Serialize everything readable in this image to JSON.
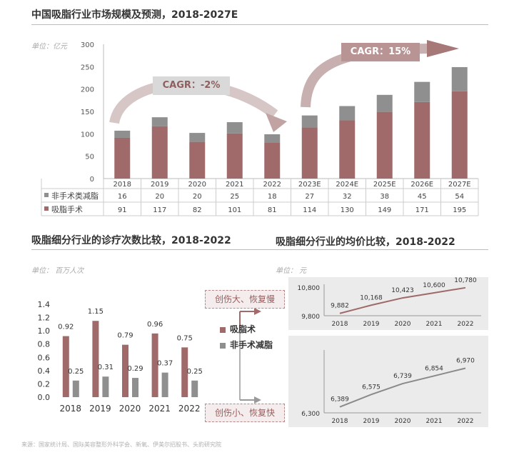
{
  "colors": {
    "surgery": "#a06a6a",
    "nonsurgery": "#8f8f8f",
    "line1": "#9e6a68",
    "line2": "#8a8a8a",
    "panel": "#ebebeb"
  },
  "chart1": {
    "title": "中国吸脂行业市场规模及预测，2018-2027E",
    "unit": "单位：亿元",
    "yticks": [
      "300",
      "250",
      "200",
      "150",
      "100",
      "50",
      "0"
    ],
    "ylim": [
      0,
      300
    ],
    "cagr_left": "CAGR：-2%",
    "cagr_right": "CAGR：15%",
    "table_labels": [
      "非手术类减脂",
      "吸脂手术"
    ]
  },
  "chart2": {
    "title": "吸脂细分行业的诊疗次数比较，2018-2022",
    "unit": "单位：  百万人次",
    "yticks": [
      "1.4",
      "1.2",
      "1.0",
      "0.8",
      "0.6",
      "0.4",
      "0.2",
      "0.0"
    ],
    "ylim": [
      0,
      1.4
    ]
  },
  "chart3": {
    "title": "吸脂细分行业的均价比较，2018-2022",
    "unit": "单位：  元",
    "top_yticks": [
      "10,800",
      "9,800"
    ],
    "bottom_yticks": [
      "6,300"
    ]
  },
  "side": {
    "box_top": "创伤大、恢复慢",
    "box_bottom": "创伤小、恢复快",
    "legend_surgery": "吸脂术",
    "legend_nonsurgery": "非手术减脂"
  },
  "source": "来源：国家统计局、国际美容整形外科学会、新氧、伊美尔招股书、头豹研究院",
  "chart_data": [
    {
      "type": "bar",
      "stacked": true,
      "title": "中国吸脂行业市场规模及预测，2018-2027E",
      "ylabel": "单位：亿元",
      "ylim": [
        0,
        300
      ],
      "categories": [
        "2018",
        "2019",
        "2020",
        "2021",
        "2022",
        "2023E",
        "2024E",
        "2025E",
        "2026E",
        "2027E"
      ],
      "series": [
        {
          "name": "吸脂手术",
          "values": [
            91,
            117,
            82,
            101,
            81,
            114,
            130,
            149,
            171,
            195
          ]
        },
        {
          "name": "非手术类减脂",
          "values": [
            16,
            20,
            20,
            25,
            18,
            27,
            32,
            38,
            45,
            54
          ]
        }
      ]
    },
    {
      "type": "bar",
      "title": "吸脂细分行业的诊疗次数比较，2018-2022",
      "ylabel": "单位：  百万人次",
      "ylim": [
        0,
        1.4
      ],
      "categories": [
        "2018",
        "2019",
        "2020",
        "2021",
        "2022"
      ],
      "series": [
        {
          "name": "吸脂术",
          "values": [
            0.92,
            1.15,
            0.79,
            0.96,
            0.75
          ]
        },
        {
          "name": "非手术减脂",
          "values": [
            0.25,
            0.31,
            0.29,
            0.37,
            0.25
          ]
        }
      ]
    },
    {
      "type": "line",
      "title": "吸脂细分行业的均价比较，2018-2022",
      "ylabel": "单位：  元",
      "x": [
        "2018",
        "2019",
        "2020",
        "2021",
        "2022"
      ],
      "ylim": [
        9800,
        10800
      ],
      "series": [
        {
          "name": "吸脂术",
          "values": [
            9882,
            10168,
            10423,
            10600,
            10780
          ]
        }
      ]
    },
    {
      "type": "line",
      "x": [
        "2018",
        "2019",
        "2020",
        "2021",
        "2022"
      ],
      "ylim": [
        6300,
        7200
      ],
      "series": [
        {
          "name": "非手术减脂",
          "values": [
            6389,
            6575,
            6739,
            6854,
            6970
          ]
        }
      ]
    }
  ]
}
